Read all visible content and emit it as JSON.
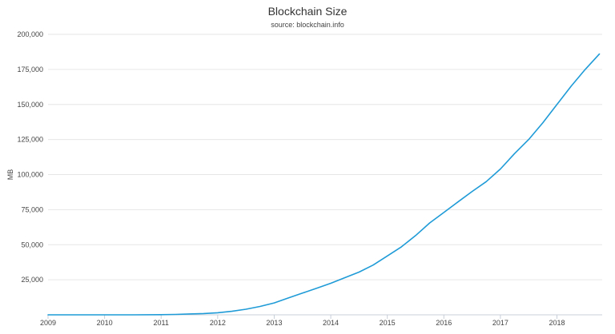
{
  "chart_data": {
    "type": "line",
    "title": "Blockchain Size",
    "subtitle": "source: blockchain.info",
    "xlabel": "",
    "ylabel": "MB",
    "xlim": [
      2009.0,
      2018.8
    ],
    "ylim": [
      0,
      200000
    ],
    "grid": true,
    "legend": "none",
    "color": "#1f9bd7",
    "x_ticks": [
      "2009",
      "2010",
      "2011",
      "2012",
      "2013",
      "2014",
      "2015",
      "2016",
      "2017",
      "2018"
    ],
    "y_ticks": [
      "25,000",
      "50,000",
      "75,000",
      "100,000",
      "125,000",
      "150,000",
      "175,000",
      "200,000"
    ],
    "series": [
      {
        "x": [
          2009.0,
          2009.5,
          2010.0,
          2010.5,
          2011.0,
          2011.25,
          2011.5,
          2011.75,
          2012.0,
          2012.25,
          2012.5,
          2012.75,
          2013.0,
          2013.25,
          2013.5,
          2013.75,
          2014.0,
          2014.25,
          2014.5,
          2014.75,
          2015.0,
          2015.25,
          2015.5,
          2015.75,
          2016.0,
          2016.25,
          2016.5,
          2016.75,
          2017.0,
          2017.25,
          2017.5,
          2017.75,
          2018.0,
          2018.25,
          2018.5,
          2018.75
        ],
        "y": [
          0,
          0,
          0,
          0,
          100,
          300,
          600,
          900,
          1500,
          2500,
          4000,
          6000,
          8500,
          12000,
          15500,
          19000,
          22500,
          26500,
          30500,
          35500,
          42000,
          48500,
          56500,
          65500,
          73000,
          80500,
          88000,
          95000,
          104000,
          115000,
          125000,
          137000,
          150000,
          163000,
          175000,
          186000
        ]
      }
    ]
  }
}
